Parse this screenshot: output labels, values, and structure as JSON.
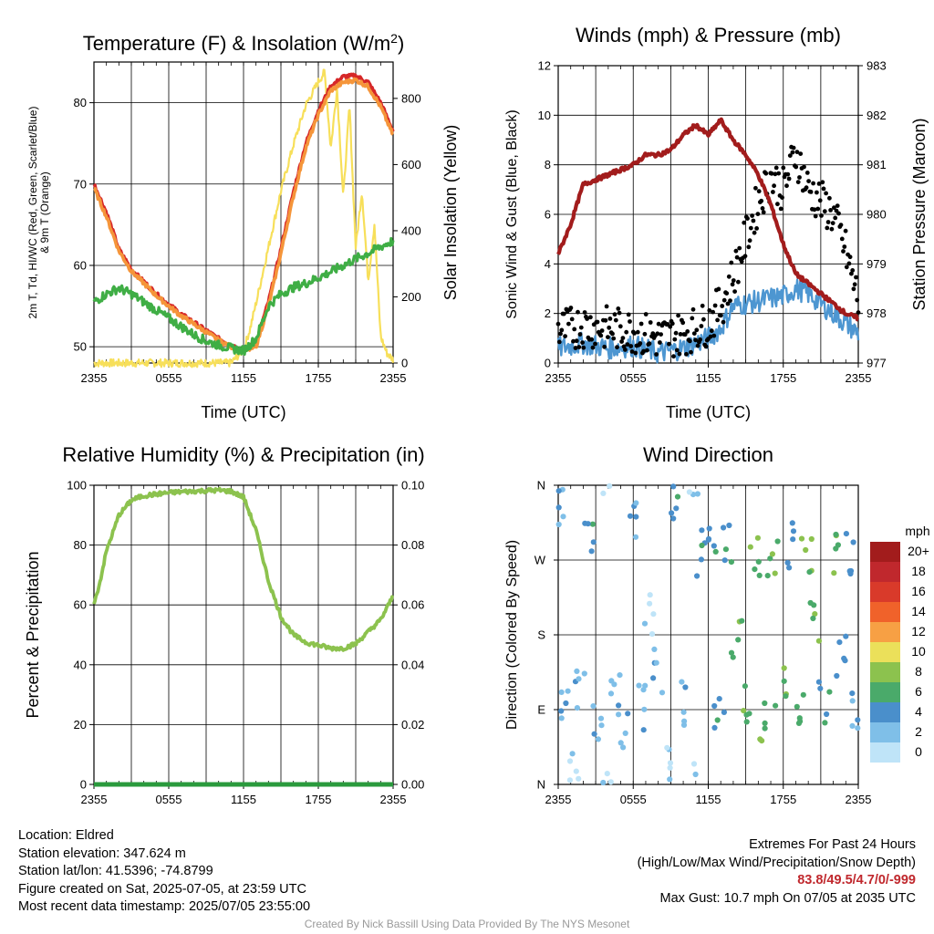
{
  "chart_data": [
    {
      "type": "line",
      "title": "Temperature (F) & Insolation (W/m²)",
      "title_parts": {
        "main": "Temperature (F) & Insolation (W/m",
        "sup": "2",
        "end": ")"
      },
      "xlabel": "Time (UTC)",
      "ylabel_left_lines": [
        "2m T, Td, HI/WC (Red, Green, Scarlet/Blue)",
        "& 9m T (Orange)"
      ],
      "ylabel_right": "Solar Insolation (Yellow)",
      "x_ticks": [
        "2355",
        "0555",
        "1155",
        "1755",
        "2355"
      ],
      "y_left_ticks": [
        50,
        60,
        70,
        80
      ],
      "ylim_left": [
        48,
        85
      ],
      "y_right_ticks": [
        0,
        200,
        400,
        600,
        800
      ],
      "ylim_right": [
        0,
        910
      ],
      "grid": true,
      "series": [
        {
          "role": "2m T",
          "color": "#d62728",
          "axis": "left",
          "x": [
            0,
            1,
            2,
            3,
            4,
            5,
            6,
            7,
            8,
            9,
            10,
            11,
            12,
            13,
            14,
            15,
            16,
            17,
            18,
            19,
            20,
            21,
            22,
            23,
            24
          ],
          "values": [
            70,
            66.5,
            62,
            59.5,
            58,
            56.5,
            55.2,
            54,
            53,
            52,
            51,
            50.2,
            49.6,
            50.5,
            55.5,
            62,
            69,
            75,
            79,
            82,
            83.2,
            83.3,
            82.5,
            80,
            76.5
          ]
        },
        {
          "role": "HI/WC",
          "color": "#d62728",
          "axis": "left",
          "x": [
            0,
            6,
            12,
            18,
            24
          ],
          "values": [
            70,
            55.2,
            49.6,
            79,
            76.5
          ]
        },
        {
          "role": "9m T",
          "color": "#f5953a",
          "axis": "left",
          "x": [
            0,
            1,
            2,
            3,
            4,
            5,
            6,
            7,
            8,
            9,
            10,
            11,
            12,
            13,
            14,
            15,
            16,
            17,
            18,
            19,
            20,
            21,
            22,
            23,
            24
          ],
          "values": [
            69.5,
            66,
            61.8,
            59.3,
            57.8,
            56.3,
            55,
            53.8,
            52.8,
            51.8,
            50.8,
            50,
            49.4,
            50,
            55,
            61.5,
            68.5,
            74.5,
            78.5,
            81.5,
            82.5,
            82.8,
            82,
            79.5,
            76
          ]
        },
        {
          "role": "2m Td",
          "color": "#3fae45",
          "axis": "left",
          "x": [
            0,
            1,
            2,
            3,
            4,
            5,
            6,
            7,
            8,
            9,
            10,
            11,
            12,
            13,
            14,
            15,
            16,
            17,
            18,
            19,
            20,
            21,
            22,
            23,
            24
          ],
          "values": [
            55.5,
            56.5,
            57.2,
            56.5,
            55.5,
            54.5,
            53.5,
            52.5,
            51.5,
            50.7,
            50.2,
            49.8,
            49.5,
            51,
            55,
            56.5,
            57.3,
            57.8,
            58.5,
            59.2,
            60,
            60.8,
            61.5,
            62.3,
            63
          ]
        },
        {
          "role": "Solar Insolation",
          "color": "#f7df5a",
          "axis": "right",
          "x": [
            0,
            1,
            5,
            10,
            11,
            12,
            12.5,
            13,
            14,
            15,
            16,
            17,
            18,
            18.5,
            19,
            19.5,
            20,
            20.5,
            21,
            21.5,
            22,
            22.5,
            23,
            23.5,
            24
          ],
          "values": [
            0,
            0,
            0,
            0,
            0,
            40,
            100,
            180,
            350,
            520,
            660,
            780,
            850,
            880,
            650,
            830,
            500,
            780,
            350,
            520,
            250,
            420,
            80,
            30,
            10
          ]
        }
      ]
    },
    {
      "type": "line",
      "title": "Winds (mph) & Pressure (mb)",
      "xlabel": "Time (UTC)",
      "ylabel_left": "Sonic Wind & Gust (Blue, Black)",
      "ylabel_right": "Station Pressure (Maroon)",
      "x_ticks": [
        "2355",
        "0555",
        "1155",
        "1755",
        "2355"
      ],
      "y_left_ticks": [
        0,
        2,
        4,
        6,
        8,
        10,
        12
      ],
      "ylim_left": [
        0,
        12
      ],
      "y_right_ticks": [
        977,
        978,
        979,
        980,
        981,
        982,
        983
      ],
      "ylim_right": [
        977,
        983
      ],
      "grid": true,
      "series": [
        {
          "role": "Sonic Wind",
          "color": "#4d96d1",
          "axis": "left",
          "x": [
            0,
            2,
            4,
            6,
            8,
            10,
            12,
            13,
            14,
            16,
            18,
            19,
            20,
            22,
            24
          ],
          "values": [
            0.6,
            0.8,
            0.6,
            0.7,
            0.4,
            0.6,
            1.0,
            1.4,
            2.3,
            2.5,
            2.7,
            3.0,
            2.8,
            2.0,
            1.2
          ]
        },
        {
          "role": "Gust",
          "color": "#000000",
          "axis": "left",
          "x": [
            0,
            2,
            4,
            6,
            8,
            10,
            12,
            13,
            14,
            15,
            16,
            17,
            18,
            19,
            20,
            21,
            22,
            23,
            24
          ],
          "values": [
            1.3,
            1.5,
            1.4,
            1.3,
            1.0,
            1.2,
            1.6,
            2.3,
            3.5,
            5.0,
            6.5,
            7.5,
            7.0,
            8.5,
            7.0,
            6.5,
            6.0,
            4.5,
            2.5
          ]
        },
        {
          "role": "Station Pressure",
          "color": "#a21c1c",
          "axis": "right",
          "x": [
            0,
            1,
            2,
            3,
            4,
            5,
            6,
            7,
            8,
            9,
            10,
            11,
            12,
            13,
            14,
            15,
            16,
            17,
            18,
            19,
            20,
            21,
            22,
            23,
            24
          ],
          "values": [
            979.2,
            979.8,
            980.6,
            980.7,
            980.8,
            980.9,
            981.0,
            981.2,
            981.2,
            981.3,
            981.6,
            981.8,
            981.6,
            981.9,
            981.5,
            981.2,
            980.8,
            980.2,
            979.4,
            978.8,
            978.6,
            978.4,
            978.2,
            978.0,
            977.9
          ]
        }
      ]
    },
    {
      "type": "line",
      "title": "Relative Humidity (%) & Precipitation (in)",
      "ylabel_left": "Percent & Precipitation",
      "x_ticks": [
        "2355",
        "0555",
        "1155",
        "1755",
        "2355"
      ],
      "y_left_ticks": [
        0,
        20,
        40,
        60,
        80,
        100
      ],
      "ylim_left": [
        0,
        100
      ],
      "y_right_ticks": [
        "0.00",
        "0.02",
        "0.04",
        "0.06",
        "0.08",
        "0.10"
      ],
      "ylim_right": [
        0,
        0.1
      ],
      "grid": true,
      "series": [
        {
          "role": "Relative Humidity",
          "color": "#8cc24e",
          "axis": "left",
          "x": [
            0,
            0.5,
            1,
            2,
            3,
            4,
            5,
            6,
            7,
            8,
            9,
            10,
            11,
            12,
            13,
            14,
            15,
            16,
            17,
            18,
            19,
            20,
            21,
            22,
            23,
            24
          ],
          "values": [
            60,
            68,
            78,
            90,
            95,
            96.5,
            97,
            97.5,
            97.8,
            98,
            98.2,
            98.3,
            98,
            96,
            85,
            68,
            56,
            50,
            47.5,
            46.5,
            45.5,
            45.5,
            47,
            51,
            55,
            63
          ]
        },
        {
          "role": "Precipitation",
          "color": "#2a9a3d",
          "axis": "right",
          "x": [
            0,
            24
          ],
          "values": [
            0,
            0
          ]
        }
      ]
    },
    {
      "type": "scatter",
      "title": "Wind Direction",
      "ylabel_left": "Direction (Colored By Speed)",
      "x_ticks": [
        "2355",
        "0555",
        "1155",
        "1755",
        "2355"
      ],
      "y_ticks": [
        "N",
        "E",
        "S",
        "W",
        "N"
      ],
      "ylim": [
        0,
        360
      ],
      "grid": true,
      "legend": {
        "title": "mph",
        "position": "right",
        "labels": [
          "20+",
          "18",
          "16",
          "14",
          "12",
          "10",
          "8",
          "6",
          "4",
          "2",
          "0"
        ],
        "colors": [
          "#a21c1c",
          "#c0282d",
          "#d93a2a",
          "#f0622a",
          "#f7a044",
          "#ebe05a",
          "#8cc24e",
          "#4aaa6a",
          "#4a8fcb",
          "#7fbfe8",
          "#bfe4f8"
        ]
      },
      "series": [
        {
          "role": "Direction",
          "x": [
            0.2,
            0.6,
            1.2,
            1.8,
            2.5,
            3.1,
            3.8,
            4.5,
            5.2,
            5.9,
            6.6,
            7.3,
            8.0,
            8.7,
            9.4,
            10.1,
            10.8,
            11.5,
            12.2,
            12.9,
            13.6,
            14.3,
            15.0,
            15.7,
            16.4,
            17.1,
            17.8,
            18.5,
            19.2,
            19.9,
            20.6,
            21.3,
            22.0,
            22.7,
            23.4,
            23.8
          ],
          "values": [
            340,
            100,
            20,
            120,
            300,
            80,
            350,
            110,
            60,
            310,
            90,
            200,
            140,
            30,
            330,
            100,
            10,
            280,
            300,
            90,
            285,
            180,
            100,
            280,
            75,
            280,
            120,
            285,
            90,
            275,
            200,
            100,
            280,
            150,
            275,
            90
          ],
          "speed_mph": [
            1,
            1,
            0,
            1,
            2,
            1,
            0,
            1,
            1,
            1,
            1,
            0,
            1,
            0,
            2,
            1,
            0,
            2,
            2,
            2,
            2,
            3,
            3,
            3,
            3,
            3,
            3,
            2,
            3,
            3,
            3,
            2,
            3,
            2,
            2,
            1
          ]
        }
      ]
    }
  ],
  "info_left": {
    "location": "Location: Eldred",
    "elevation": "Station elevation: 347.624 m",
    "latlon": "Station lat/lon: 41.5396; -74.8799",
    "created": "Figure created on Sat, 2025-07-05, at 23:59 UTC",
    "recent": "Most recent data timestamp: 2025/07/05 23:55:00"
  },
  "info_right": {
    "heading": "Extremes For Past 24 Hours",
    "subheading": "(High/Low/Max Wind/Precipitation/Snow Depth)",
    "values": "83.8/49.5/4.7/0/-999",
    "gust": "Max Gust: 10.7 mph On 07/05 at 2035 UTC"
  },
  "credit": "Created By Nick Bassill Using Data Provided By The NYS Mesonet"
}
